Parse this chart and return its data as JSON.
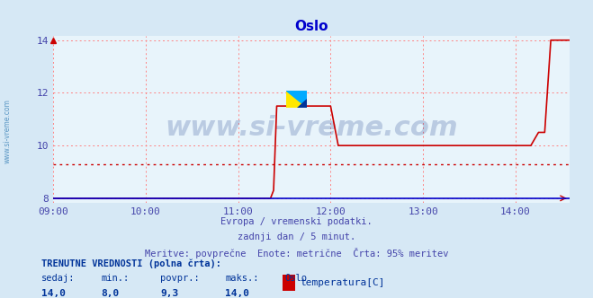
{
  "title": "Oslo",
  "title_color": "#0000cc",
  "bg_color": "#d6e8f5",
  "plot_bg_color": "#e8f4fb",
  "grid_color": "#ff8080",
  "xlabel_lines": [
    "Evropa / vremenski podatki.",
    "zadnji dan / 5 minut.",
    "Meritve: povprečne  Enote: metrične  Črta: 95% meritev"
  ],
  "xlabel_color": "#4444aa",
  "ylabel_values": [
    8,
    10,
    12,
    14
  ],
  "xlim_hours": [
    9.0,
    14.583
  ],
  "ylim": [
    7.833,
    14.167
  ],
  "ytick_labels": [
    "8",
    "10",
    "12",
    "14"
  ],
  "xtick_labels": [
    "09:00",
    "10:00",
    "11:00",
    "12:00",
    "13:00",
    "14:00"
  ],
  "xtick_hours": [
    9.0,
    10.0,
    11.0,
    12.0,
    13.0,
    14.0
  ],
  "tick_color": "#4444aa",
  "axis_color": "#0000ff",
  "avg_value": 9.3,
  "avg_line_color": "#cc0000",
  "line_color": "#cc0000",
  "line_width": 1.2,
  "watermark": "www.si-vreme.com",
  "watermark_color": "#1a3a8a",
  "watermark_alpha": 0.22,
  "footer_bold": "TRENUTNE VREDNOSTI (polna črta):",
  "footer_labels": [
    "sedaj:",
    "min.:",
    "povpr.:",
    "maks.:",
    "Oslo"
  ],
  "footer_values": [
    "14,0",
    "8,0",
    "9,3",
    "14,0"
  ],
  "legend_label": "temperatura[C]",
  "legend_color": "#cc0000",
  "sidebar_text": "www.si-vreme.com",
  "sidebar_color": "#4488bb",
  "time_series_hours": [
    9.0,
    9.083,
    9.167,
    9.25,
    9.333,
    9.417,
    9.5,
    9.583,
    9.667,
    9.75,
    9.833,
    9.917,
    10.0,
    10.083,
    10.167,
    10.25,
    10.333,
    10.417,
    10.5,
    10.583,
    10.667,
    10.75,
    10.833,
    10.917,
    11.0,
    11.083,
    11.167,
    11.25,
    11.283,
    11.317,
    11.35,
    11.383,
    11.417,
    11.45,
    11.483,
    11.517,
    11.55,
    11.583,
    11.617,
    11.65,
    11.683,
    11.717,
    11.75,
    11.783,
    11.817,
    11.85,
    11.883,
    11.917,
    11.95,
    11.983,
    12.0,
    12.083,
    12.167,
    12.25,
    12.333,
    12.417,
    12.5,
    12.583,
    12.667,
    12.75,
    12.833,
    12.917,
    13.0,
    13.083,
    13.167,
    13.25,
    13.333,
    13.417,
    13.5,
    13.583,
    13.667,
    13.75,
    13.833,
    13.917,
    14.0,
    14.083,
    14.167,
    14.25,
    14.317,
    14.383,
    14.417,
    14.45,
    14.5,
    14.583
  ],
  "time_series_values": [
    8.0,
    8.0,
    8.0,
    8.0,
    8.0,
    8.0,
    8.0,
    8.0,
    8.0,
    8.0,
    8.0,
    8.0,
    8.0,
    8.0,
    8.0,
    8.0,
    8.0,
    8.0,
    8.0,
    8.0,
    8.0,
    8.0,
    8.0,
    8.0,
    8.0,
    8.0,
    8.0,
    8.0,
    8.0,
    8.0,
    8.0,
    8.3,
    11.5,
    11.5,
    11.5,
    11.5,
    11.5,
    11.5,
    11.5,
    11.5,
    11.5,
    11.5,
    11.5,
    11.5,
    11.5,
    11.5,
    11.5,
    11.5,
    11.5,
    11.5,
    11.5,
    10.0,
    10.0,
    10.0,
    10.0,
    10.0,
    10.0,
    10.0,
    10.0,
    10.0,
    10.0,
    10.0,
    10.0,
    10.0,
    10.0,
    10.0,
    10.0,
    10.0,
    10.0,
    10.0,
    10.0,
    10.0,
    10.0,
    10.0,
    10.0,
    10.0,
    10.0,
    10.5,
    10.5,
    14.0,
    14.0,
    14.0,
    14.0,
    14.0
  ]
}
